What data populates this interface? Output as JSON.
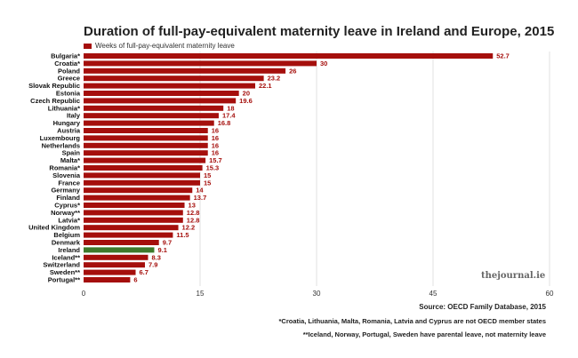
{
  "title": "Duration of full-pay-equivalent maternity leave in Ireland and Europe, 2015",
  "legend_label": "Weeks of full-pay-equivalent maternity leave",
  "source": "Source: OECD Family Database, 2015",
  "note1": "*Croatia, Lithuania, Malta, Romania, Latvia and Cyprus are not OECD member states",
  "note2": "**Iceland, Norway, Portugal, Sweden have parental leave, not maternity leave",
  "brand": "thejournal.ie",
  "colors": {
    "bar": "#a50f0c",
    "highlight": "#3e7a2c",
    "grid": "#cfcfcf"
  },
  "chart_data": {
    "type": "bar",
    "orientation": "horizontal",
    "categories": [
      "Bulgaria*",
      "Croatia*",
      "Poland",
      "Greece",
      "Slovak Republic",
      "Estonia",
      "Czech Republic",
      "Lithuania*",
      "Italy",
      "Hungary",
      "Austria",
      "Luxembourg",
      "Netherlands",
      "Spain",
      "Malta*",
      "Romania*",
      "Slovenia",
      "France",
      "Germany",
      "Finland",
      "Cyprus*",
      "Norway**",
      "Latvia*",
      "United Kingdom",
      "Belgium",
      "Denmark",
      "Ireland",
      "Iceland**",
      "Switzerland",
      "Sweden**",
      "Portugal**"
    ],
    "values": [
      52.7,
      30,
      26,
      23.2,
      22.1,
      20,
      19.6,
      18,
      17.4,
      16.8,
      16,
      16,
      16,
      16,
      15.7,
      15.3,
      15,
      15,
      14,
      13.7,
      13,
      12.8,
      12.8,
      12.2,
      11.5,
      9.7,
      9.1,
      8.3,
      7.9,
      6.7,
      6
    ],
    "value_labels": [
      "52.7",
      "30",
      "26",
      "23.2",
      "22.1",
      "20",
      "19.6",
      "18",
      "17.4",
      "16.8",
      "16",
      "16",
      "16",
      "16",
      "15.7",
      "15.3",
      "15",
      "15",
      "14",
      "13.7",
      "13",
      "12.8",
      "12.8",
      "12.2",
      "11.5",
      "9.7",
      "9.1",
      "8.3",
      "7.9",
      "6.7",
      "6"
    ],
    "highlight": "Ireland",
    "series": [
      {
        "name": "Weeks of full-pay-equivalent maternity leave"
      }
    ],
    "xlim": [
      0,
      60
    ],
    "xticks": [
      0,
      15,
      30,
      45,
      60
    ],
    "grid": true,
    "legend_position": "top-left"
  }
}
